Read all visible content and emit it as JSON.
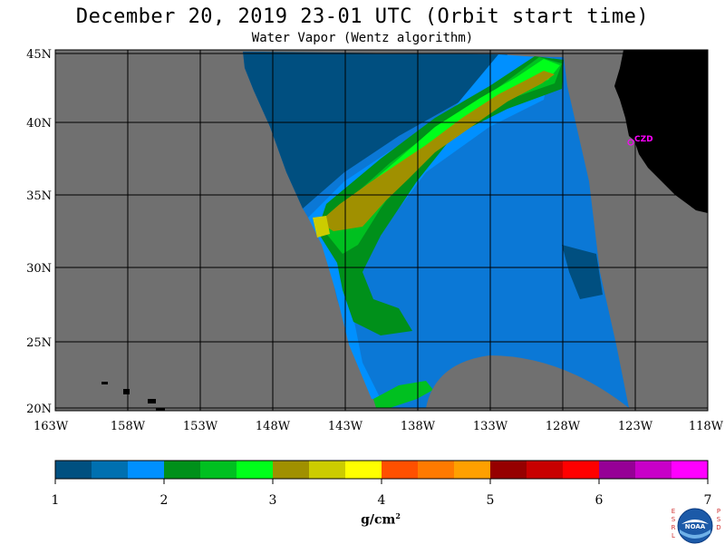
{
  "header": {
    "title": "December 20, 2019  23-01 UTC  (Orbit start time)",
    "subtitle": "Water Vapor (Wentz algorithm)"
  },
  "map": {
    "background_color": "#707070",
    "land_color": "#000000",
    "grid_color": "#000000",
    "lat_labels": [
      "45N",
      "40N",
      "35N",
      "30N",
      "25N",
      "20N"
    ],
    "lon_labels": [
      "163W",
      "158W",
      "153W",
      "148W",
      "143W",
      "138W",
      "133W",
      "128W",
      "123W",
      "118W"
    ],
    "station": {
      "label": "CZD",
      "color": "#ff00ff"
    }
  },
  "colorbar": {
    "colors": [
      "#005080",
      "#0070b0",
      "#0090ff",
      "#00901a",
      "#00c020",
      "#00ff1a",
      "#a09000",
      "#cccc00",
      "#ffff00",
      "#ff5000",
      "#ff7a00",
      "#ffa000",
      "#960000",
      "#c80000",
      "#ff0000",
      "#960096",
      "#c800c8",
      "#ff00ff"
    ],
    "tick_labels": [
      "1",
      "2",
      "3",
      "4",
      "5",
      "6",
      "7"
    ],
    "units": "g/cm",
    "units_exponent": "2"
  },
  "logo": {
    "left_letters": "ESRL",
    "right_letters": "PSD",
    "center_text": "NOAA"
  }
}
